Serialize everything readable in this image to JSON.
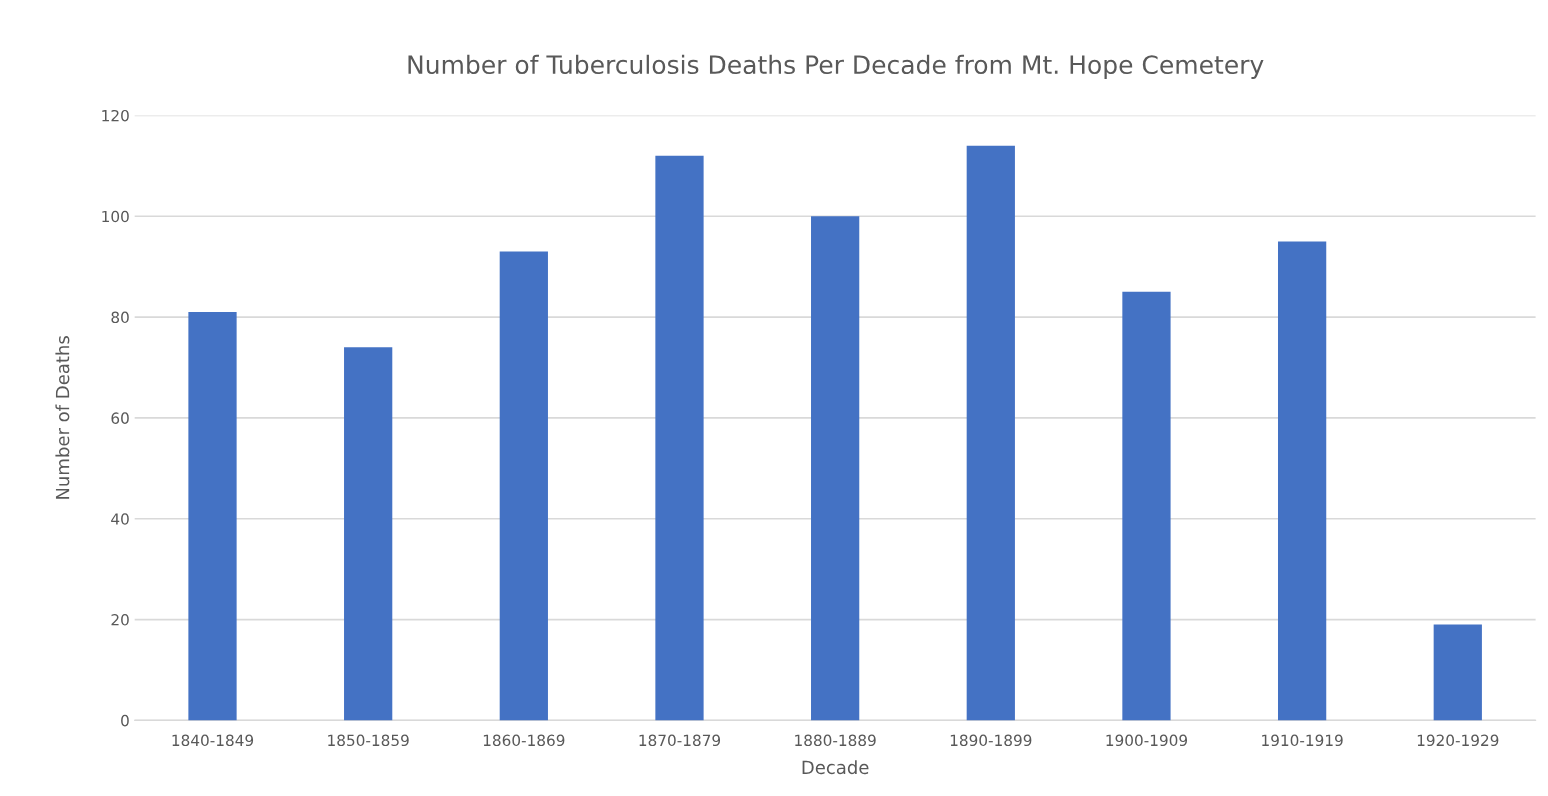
{
  "chart_data": {
    "type": "bar",
    "title": "Number of Tuberculosis Deaths Per Decade from Mt. Hope Cemetery",
    "xlabel": "Decade",
    "ylabel": "Number of Deaths",
    "categories": [
      "1840-1849",
      "1850-1859",
      "1860-1869",
      "1870-1879",
      "1880-1889",
      "1890-1899",
      "1900-1909",
      "1910-1919",
      "1920-1929"
    ],
    "values": [
      81,
      74,
      93,
      112,
      100,
      114,
      85,
      95,
      19
    ],
    "color": "#4472c4",
    "ylim": [
      0,
      120
    ],
    "yticks": [
      0,
      20,
      40,
      60,
      80,
      100,
      120
    ],
    "grid": "y",
    "legend": false
  }
}
